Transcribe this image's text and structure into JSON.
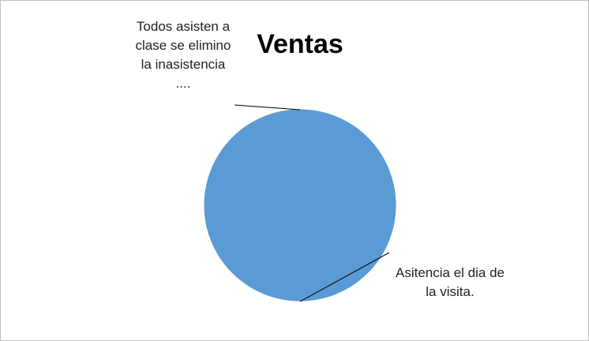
{
  "chart_data": {
    "type": "pie",
    "title": "Ventas",
    "categories": [
      "Asitencia el dia de la visita.",
      "Todos asisten a clase se elimino la inasistencia ...."
    ],
    "values": [
      100,
      0
    ],
    "colors": [
      "#5b9bd5",
      "#ed7d31"
    ]
  }
}
